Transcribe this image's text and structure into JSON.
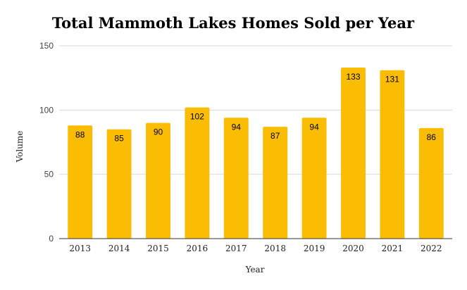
{
  "chart_data": {
    "type": "bar",
    "title": "Total Mammoth Lakes Homes Sold per Year",
    "xlabel": "Year",
    "ylabel": "Volume",
    "categories": [
      "2013",
      "2014",
      "2015",
      "2016",
      "2017",
      "2018",
      "2019",
      "2020",
      "2021",
      "2022"
    ],
    "values": [
      88,
      85,
      90,
      102,
      94,
      87,
      94,
      133,
      131,
      86
    ],
    "ylim": [
      0,
      150
    ],
    "yticks": [
      "0",
      "50",
      "100",
      "150"
    ],
    "grid": true,
    "legend": "none",
    "bar_color": "#FBBC04",
    "grid_color": "#D9D9D9",
    "axis_color": "#333333"
  }
}
